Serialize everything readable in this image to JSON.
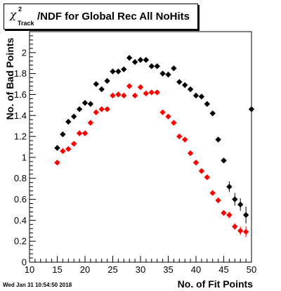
{
  "title": {
    "symbol": "χ",
    "superscript": "2",
    "subscript": "Track",
    "text": "/NDF for Global Rec All NoHits"
  },
  "timestamp": "Wed Jan 31 10:54:50 2018",
  "colors": {
    "series_black": "#000000",
    "series_red": "#ff0000",
    "axis": "#000000"
  },
  "chart_data": {
    "type": "scatter",
    "title": "χ²_Track/NDF for Global Rec All NoHits",
    "xlabel": "No. of Fit Points",
    "ylabel": "No. of Bad Points",
    "xlim": [
      10,
      50
    ],
    "ylim": [
      0,
      2.2
    ],
    "x_ticks": [
      10,
      15,
      20,
      25,
      30,
      35,
      40,
      45,
      50
    ],
    "y_ticks": [
      0,
      0.2,
      0.4,
      0.6,
      0.8,
      1,
      1.2,
      1.4,
      1.6,
      1.8,
      2
    ],
    "grid": false,
    "marker": "diamond",
    "series": [
      {
        "color": "#000000",
        "x": [
          15,
          16,
          17,
          18,
          19,
          20,
          21,
          22,
          23,
          24,
          25,
          26,
          27,
          28,
          29,
          30,
          31,
          32,
          33,
          34,
          35,
          36,
          37,
          38,
          39,
          40,
          41,
          42,
          43,
          44,
          45,
          46,
          47,
          48,
          49,
          50
        ],
        "y": [
          1.09,
          1.22,
          1.34,
          1.39,
          1.46,
          1.52,
          1.51,
          1.7,
          1.65,
          1.73,
          1.82,
          1.82,
          1.84,
          1.95,
          1.91,
          1.93,
          1.93,
          1.87,
          1.87,
          1.8,
          1.79,
          1.85,
          1.72,
          1.69,
          1.65,
          1.59,
          1.58,
          1.51,
          1.42,
          1.17,
          0.97,
          0.72,
          0.6,
          0.55,
          0.45,
          1.46
        ],
        "yerr": [
          0.01,
          0.01,
          0.01,
          0.01,
          0.01,
          0.01,
          0.01,
          0.01,
          0.01,
          0.01,
          0.01,
          0.01,
          0.01,
          0.01,
          0.01,
          0.01,
          0.01,
          0.01,
          0.01,
          0.01,
          0.01,
          0.01,
          0.01,
          0.01,
          0.01,
          0.01,
          0.01,
          0.01,
          0.01,
          0.01,
          0.02,
          0.05,
          0.06,
          0.06,
          0.08,
          0.9
        ]
      },
      {
        "color": "#ff0000",
        "x": [
          15,
          16,
          17,
          18,
          19,
          20,
          21,
          22,
          23,
          24,
          25,
          26,
          27,
          28,
          29,
          30,
          31,
          32,
          33,
          34,
          35,
          36,
          37,
          38,
          39,
          40,
          41,
          42,
          43,
          44,
          45,
          46,
          47,
          48,
          49
        ],
        "y": [
          0.95,
          1.06,
          1.08,
          1.13,
          1.23,
          1.23,
          1.33,
          1.43,
          1.46,
          1.46,
          1.59,
          1.6,
          1.59,
          1.68,
          1.59,
          1.67,
          1.61,
          1.62,
          1.62,
          1.43,
          1.39,
          1.33,
          1.2,
          1.17,
          1.04,
          0.95,
          0.87,
          0.81,
          0.66,
          0.59,
          0.47,
          0.45,
          0.34,
          0.3,
          0.29
        ],
        "yerr": [
          0.01,
          0.01,
          0.01,
          0.01,
          0.01,
          0.01,
          0.01,
          0.01,
          0.01,
          0.01,
          0.01,
          0.01,
          0.01,
          0.01,
          0.01,
          0.01,
          0.01,
          0.01,
          0.01,
          0.01,
          0.01,
          0.01,
          0.01,
          0.01,
          0.01,
          0.01,
          0.01,
          0.01,
          0.01,
          0.01,
          0.02,
          0.03,
          0.03,
          0.04,
          0.05
        ]
      }
    ]
  }
}
